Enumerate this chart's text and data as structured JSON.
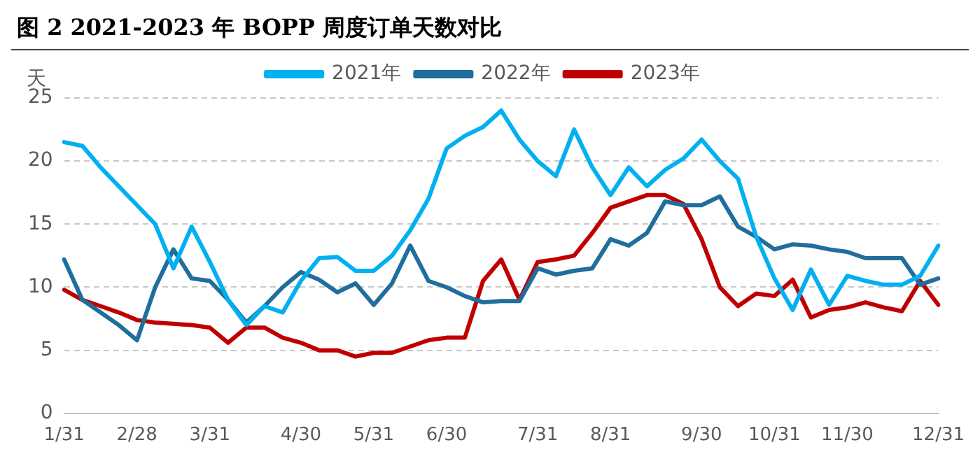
{
  "chart_data": {
    "type": "line",
    "title": "图 2 2021-2023 年 BOPP 周度订单天数对比",
    "ylabel": "天",
    "categories": [
      "1/31",
      null,
      null,
      null,
      "2/28",
      null,
      null,
      null,
      "3/31",
      null,
      null,
      null,
      null,
      "4/30",
      null,
      null,
      null,
      "5/31",
      null,
      null,
      null,
      "6/30",
      null,
      null,
      null,
      null,
      "7/31",
      null,
      null,
      null,
      "8/31",
      null,
      null,
      null,
      null,
      "9/30",
      null,
      null,
      null,
      "10/31",
      null,
      null,
      null,
      "11/30",
      null,
      null,
      null,
      null,
      "12/31"
    ],
    "series": [
      {
        "name": "2021年",
        "color": "#00b0f0",
        "values": [
          21.5,
          21.2,
          19.5,
          18,
          16.5,
          15,
          11.5,
          14.8,
          12,
          9,
          7,
          8.5,
          8,
          10.5,
          12.3,
          12.4,
          11.3,
          11.3,
          12.5,
          14.5,
          17,
          21,
          22,
          22.7,
          24,
          21.7,
          20,
          18.8,
          22.5,
          19.5,
          17.3,
          19.5,
          18,
          19.3,
          20.2,
          21.7,
          20,
          18.6,
          14,
          10.7,
          8.2,
          11.4,
          8.6,
          10.9,
          10.5,
          10.2,
          10.2,
          10.9,
          13.3
        ]
      },
      {
        "name": "2022年",
        "color": "#1f6e9c",
        "values": [
          12.2,
          9,
          8,
          7,
          5.8,
          10,
          13,
          10.7,
          10.5,
          9,
          7.2,
          8.5,
          10,
          11.2,
          10.6,
          9.6,
          10.3,
          8.6,
          10.3,
          13.3,
          10.5,
          10,
          9.3,
          8.8,
          8.9,
          8.9,
          11.5,
          11,
          11.3,
          11.5,
          13.8,
          13.3,
          14.3,
          16.8,
          16.5,
          16.5,
          17.2,
          14.8,
          14,
          13,
          13.4,
          13.3,
          13,
          12.8,
          12.3,
          12.3,
          12.3,
          10.2,
          10.7
        ]
      },
      {
        "name": "2023年",
        "color": "#c00000",
        "values": [
          9.8,
          9,
          8.5,
          8,
          7.4,
          7.2,
          7.1,
          7,
          6.8,
          5.6,
          6.8,
          6.8,
          6,
          5.6,
          5,
          5,
          4.5,
          4.8,
          4.8,
          5.3,
          5.8,
          6,
          6,
          10.5,
          12.2,
          9,
          12,
          12.2,
          12.5,
          14.3,
          16.3,
          16.8,
          17.3,
          17.3,
          16.6,
          13.8,
          10,
          8.5,
          9.5,
          9.3,
          10.6,
          7.6,
          8.2,
          8.4,
          8.8,
          8.4,
          8.1,
          10.5,
          8.6
        ]
      }
    ],
    "ylim": [
      0,
      25
    ],
    "yticks": [
      0,
      5,
      10,
      15,
      20,
      25
    ],
    "grid": "y",
    "legend": "top",
    "marker": "none",
    "line_style": "solid"
  }
}
